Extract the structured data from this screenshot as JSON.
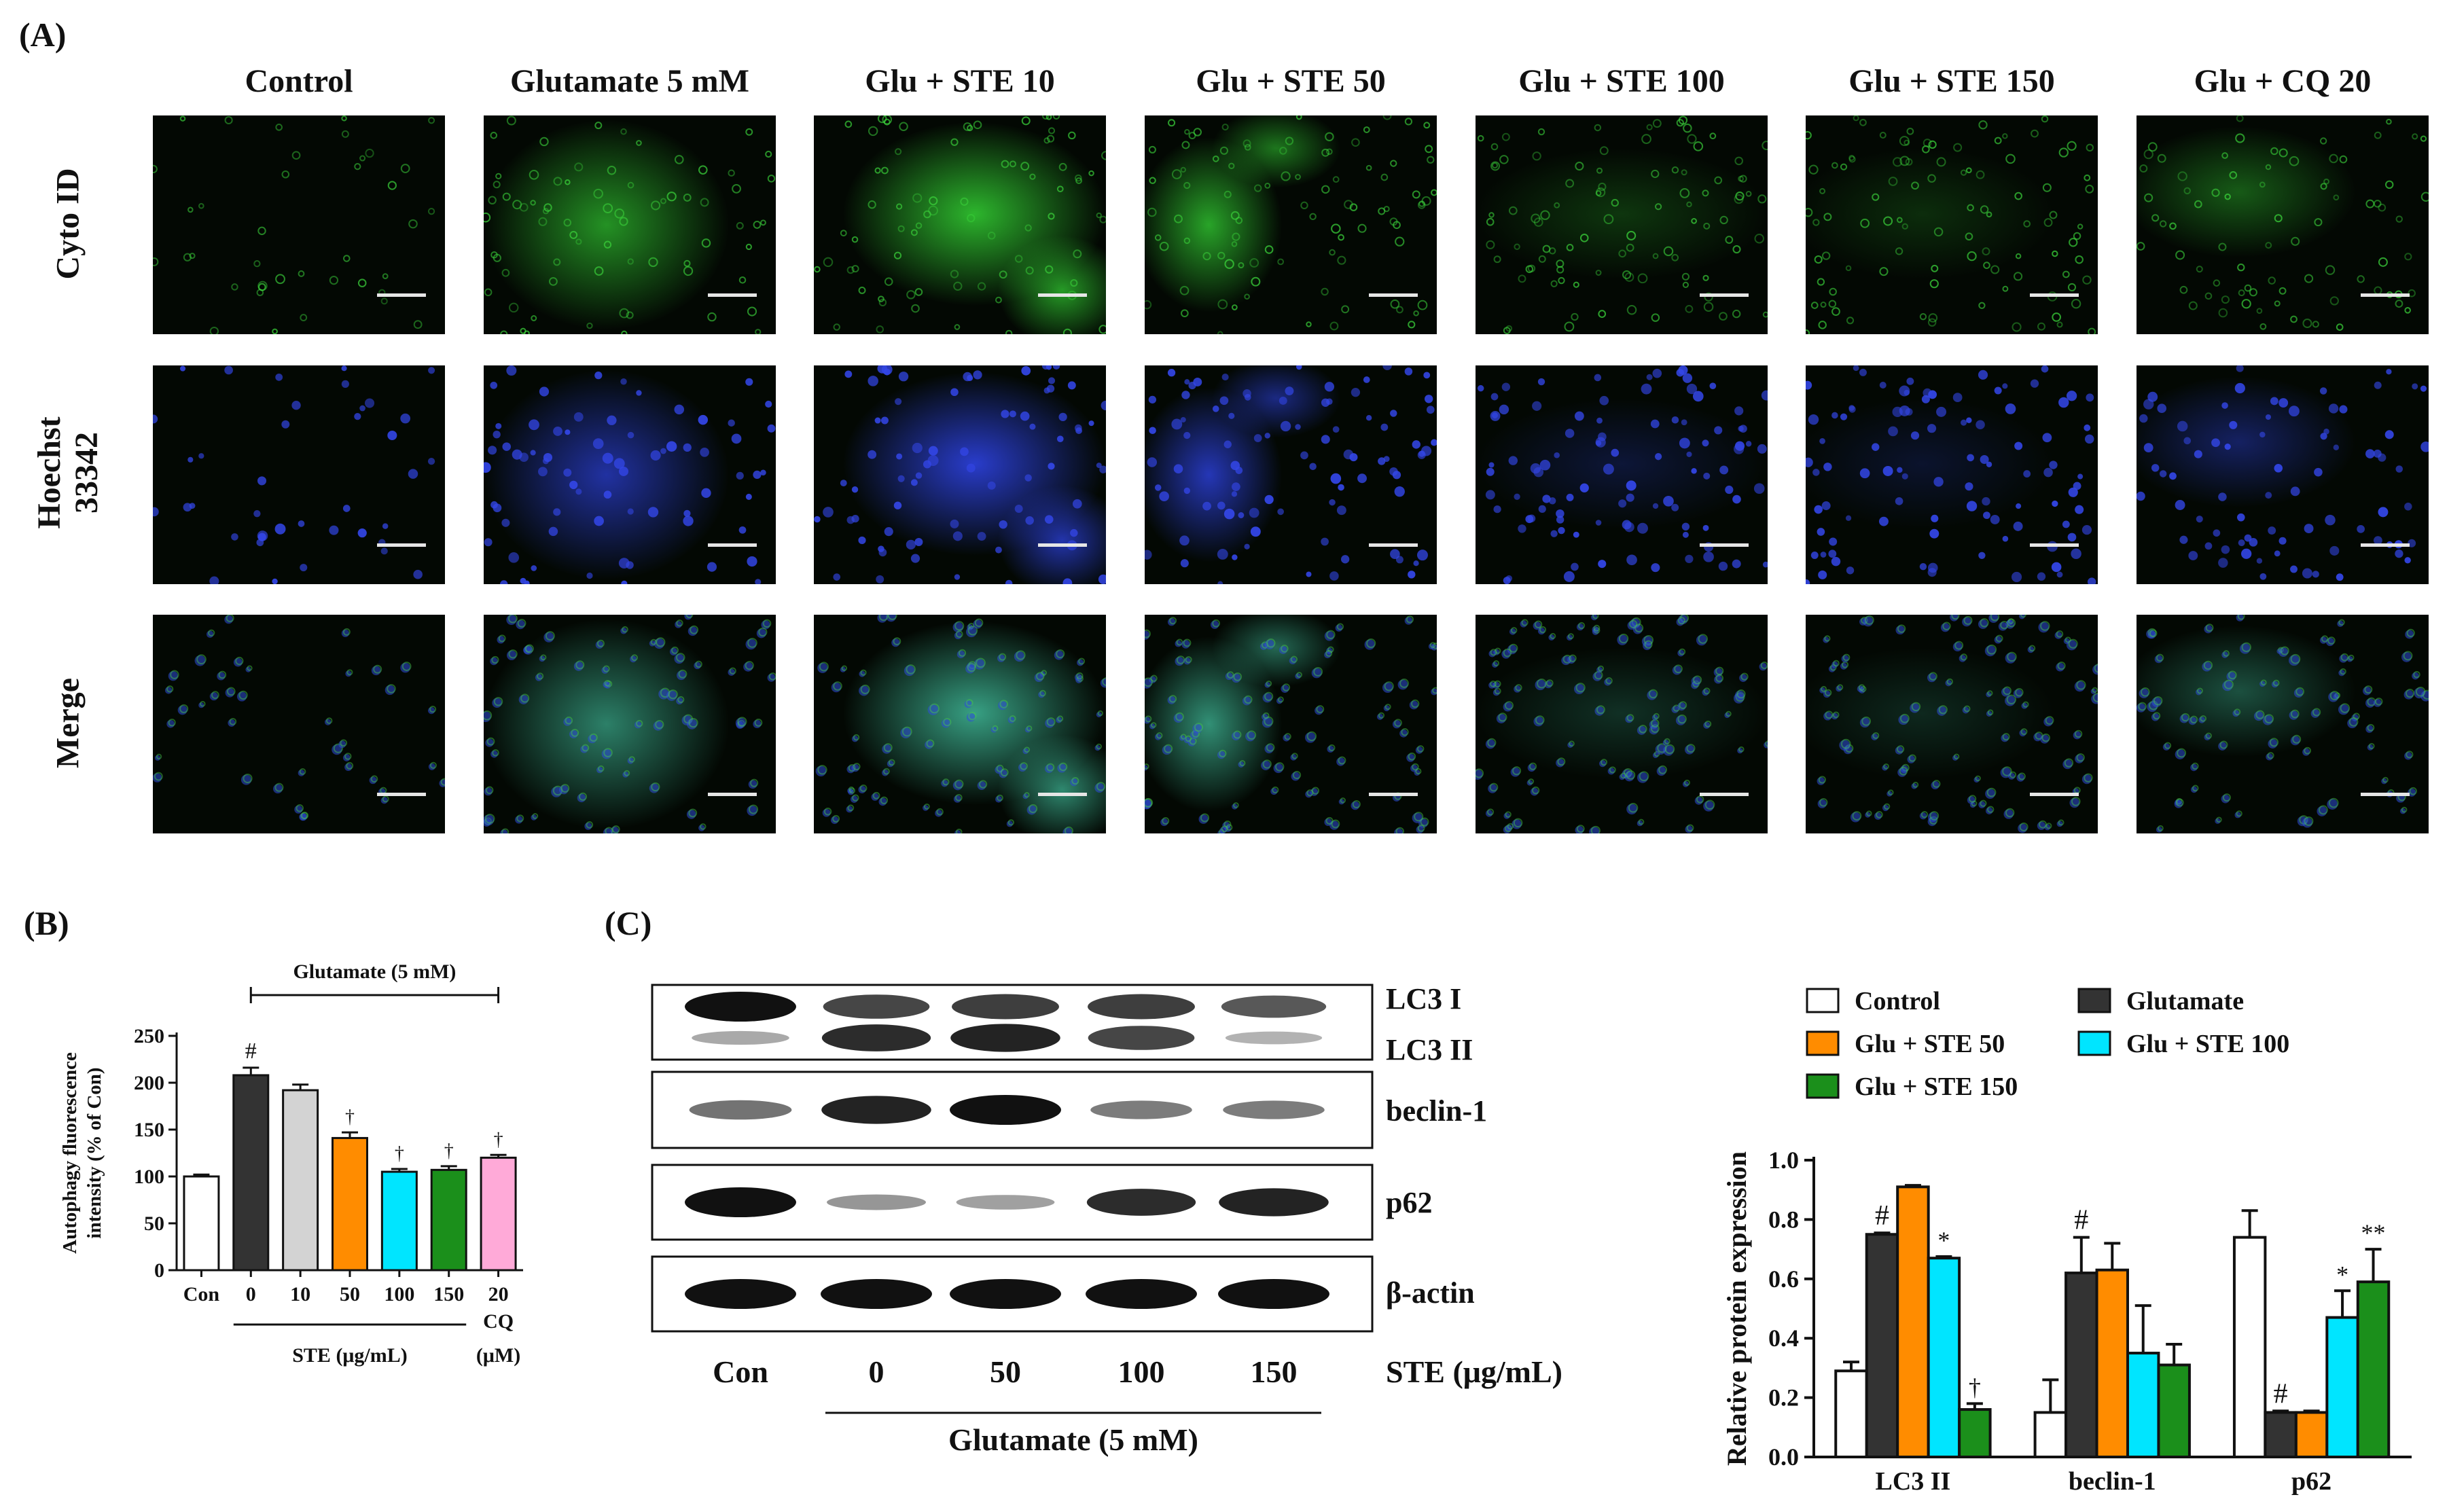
{
  "panel_a": {
    "label": "(A)",
    "columns": [
      "Control",
      "Glutamate 5 mM",
      "Glu + STE 10",
      "Glu + STE 50",
      "Glu + STE 100",
      "Glu + STE 150",
      "Glu + CQ 20"
    ],
    "rows": [
      {
        "label": "Cyto ID",
        "label_lines": [
          "Cyto ID"
        ],
        "stain": "green"
      },
      {
        "label": "Hoechst 33342",
        "label_lines": [
          "Hoechst",
          "33342"
        ],
        "stain": "blue"
      },
      {
        "label": "Merge",
        "label_lines": [
          "Merge"
        ],
        "stain": "merge"
      }
    ],
    "colors": {
      "green": "#2fbf2f",
      "blue": "#2b3fd6",
      "background": "#030803"
    }
  },
  "panel_b": {
    "label": "(B)",
    "bracket_label": "Glutamate (5 mM)",
    "group_label_ste": "STE (μg/mL)",
    "group_label_cq": "CQ",
    "group_label_cq_unit": "(μM)",
    "chart_data": {
      "type": "bar",
      "categories": [
        "Con",
        "0",
        "10",
        "50",
        "100",
        "150",
        "20"
      ],
      "values": [
        100,
        208,
        192,
        141,
        105,
        107,
        120
      ],
      "errors": [
        2,
        8,
        6,
        6,
        3,
        4,
        3
      ],
      "colors": [
        "#ffffff",
        "#333333",
        "#d3d3d3",
        "#ff8c00",
        "#00e5ff",
        "#1b8f1b",
        "#ffaad8"
      ],
      "annotations": [
        "",
        "#",
        "",
        "†",
        "†",
        "†",
        "†"
      ],
      "ylabel_lines": [
        "Autophagy fluorescence",
        "intensity (% of Con)"
      ],
      "ylim": [
        0,
        250
      ],
      "yticks": [
        0,
        50,
        100,
        150,
        200,
        250
      ]
    }
  },
  "panel_c": {
    "label": "(C)",
    "blot_labels": [
      "LC3 I",
      "LC3 II",
      "beclin-1",
      "p62",
      "β-actin"
    ],
    "lanes": [
      "Con",
      "0",
      "50",
      "100",
      "150"
    ],
    "lane_unit": "STE (μg/mL)",
    "treatment": "Glutamate (5 mM)",
    "band_intensity": {
      "LC3 I": [
        1.0,
        0.7,
        0.75,
        0.75,
        0.6
      ],
      "LC3 II": [
        0.15,
        0.85,
        0.9,
        0.7,
        0.1
      ],
      "beclin-1": [
        0.45,
        0.9,
        1.0,
        0.4,
        0.4
      ],
      "p62": [
        1.0,
        0.25,
        0.2,
        0.85,
        0.9
      ],
      "β-actin": [
        1.0,
        1.0,
        1.0,
        1.0,
        1.0
      ]
    },
    "chart_data": {
      "type": "bar",
      "categories": [
        "LC3 II",
        "beclin-1",
        "p62"
      ],
      "series": [
        {
          "name": "Control",
          "color": "#ffffff",
          "values": [
            0.29,
            0.15,
            0.74
          ],
          "errors": [
            0.03,
            0.11,
            0.09
          ],
          "annotations": [
            "",
            "",
            ""
          ]
        },
        {
          "name": "Glutamate",
          "color": "#333333",
          "values": [
            0.75,
            0.62,
            0.15
          ],
          "errors": [
            0.005,
            0.12,
            0.005
          ],
          "annotations": [
            "#",
            "#",
            "#"
          ]
        },
        {
          "name": "Glu + STE 50",
          "color": "#ff8c00",
          "values": [
            0.91,
            0.63,
            0.15
          ],
          "errors": [
            0.005,
            0.09,
            0.005
          ],
          "annotations": [
            "",
            "",
            ""
          ]
        },
        {
          "name": "Glu + STE 100",
          "color": "#00e5ff",
          "values": [
            0.67,
            0.35,
            0.47
          ],
          "errors": [
            0.005,
            0.16,
            0.09
          ],
          "annotations": [
            "*",
            "",
            "*"
          ]
        },
        {
          "name": "Glu + STE 150",
          "color": "#1b8f1b",
          "values": [
            0.16,
            0.31,
            0.59
          ],
          "errors": [
            0.02,
            0.07,
            0.11
          ],
          "annotations": [
            "†",
            "",
            "**"
          ]
        }
      ],
      "ylabel": "Relative protein expression",
      "ylim": [
        0,
        1.0
      ],
      "yticks": [
        "0.0",
        "0.2",
        "0.4",
        "0.6",
        "0.8",
        "1.0"
      ]
    }
  }
}
